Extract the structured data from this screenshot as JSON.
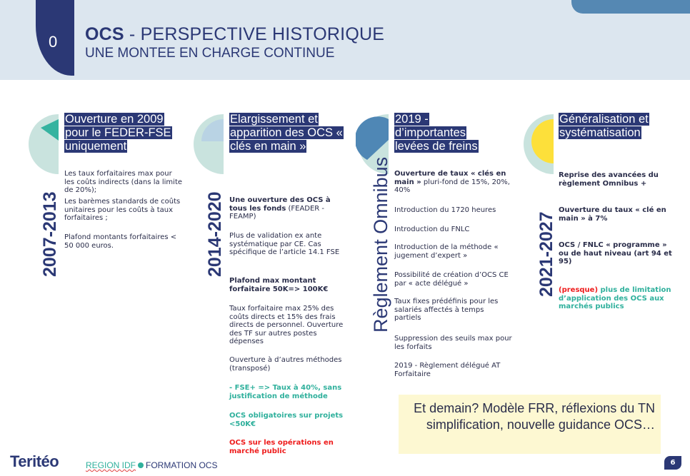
{
  "header": {
    "section_number": "0",
    "title_bold": "OCS",
    "title_rest": " - PERSPECTIVE HISTORIQUE",
    "subtitle": "UNE MONTEE EN CHARGE CONTINUE"
  },
  "columns": [
    {
      "period": "2007-2013",
      "heading": "Ouverture en 2009 pour le FEDER-FSE uniquement",
      "items": [
        {
          "text": "Les taux forfaitaires max pour les coûts indirects (dans la limite de 20%);"
        },
        {
          "text": "Les barèmes standards de coûts unitaires pour les coûts à taux forfaitaires ;"
        },
        {
          "text": "Plafond montants forfaitaires < 50 000 euros."
        }
      ]
    },
    {
      "period": "2014-2020",
      "heading": "Elargissement et apparition des OCS « clés en main »",
      "items": [
        {
          "bold": "Une ouverture des OCS à tous les fonds",
          "text": " (FEADER - FEAMP)"
        },
        {
          "text": "Plus de validation ex ante systématique par CE. Cas spécifique de l’article 14.1 FSE"
        },
        {
          "bold": "Plafond max montant forfaitaire 50K=> 100K€"
        },
        {
          "text": "Taux forfaitaire max 25% des coûts directs et 15% des frais directs de personnel. Ouverture des TF sur autres postes dépenses"
        },
        {
          "text": "Ouverture à d’autres méthodes (transposé)"
        },
        {
          "bold": "- FSE+ => Taux à 40%, sans justification de méthode",
          "color": "teal"
        },
        {
          "bold": "OCS obligatoires sur projets <50K€",
          "color": "teal"
        },
        {
          "bold": "OCS sur les opérations en marché public",
          "color": "red"
        }
      ]
    },
    {
      "period": "Règlement Omnibus",
      "heading": "2019 - d’importantes levées de freins",
      "items": [
        {
          "bold": "Ouverture de taux « clés en main »",
          "text": " pluri-fond de  15%, 20%, 40%"
        },
        {
          "text": "Introduction du 1720 heures"
        },
        {
          "text": "Introduction du FNLC"
        },
        {
          "text": "Introduction de la méthode « jugement d’expert »"
        },
        {
          "text": "Possibilité de création d’OCS CE par « acte délégué »"
        },
        {
          "text": "Taux fixes prédéfinis pour les salariés affectés à temps partiels"
        },
        {
          "text": "Suppression des seuils max pour les forfaits"
        },
        {
          "text": "2019 - Règlement délégué AT Forfaitaire"
        }
      ]
    },
    {
      "period": "2021-2027",
      "heading": "Généralisation et systématisation",
      "items": [
        {
          "bold": "Reprise des avancées du règlement Omnibus +"
        },
        {
          "bold": "Ouverture du taux « clé en main » à 7%"
        },
        {
          "bold": "OCS / FNLC  « programme » ou de haut niveau (art 94 et 95)"
        },
        {
          "red": "(presque)",
          "bold": " plus de limitation d’application des OCS aux marchés publics",
          "color": "teal"
        }
      ]
    }
  ],
  "callout": "Et demain? Modèle FRR, réflexions du TN simplification, nouvelle guidance OCS…",
  "footer": {
    "logo": "Teritéo",
    "region": "REGION IDF",
    "formation": "FORMATION OCS",
    "page_number": "6"
  },
  "colors": {
    "navy": "#2b3875",
    "teal": "#2fb09c",
    "red": "#ee1c1c",
    "header_bg": "#dce6ef",
    "callout_bg": "#fdf8d2",
    "pie_bg": "#c9e3de",
    "pie_2007": "#35b3a0",
    "pie_2014": "#b9d3e4",
    "pie_2019": "#4f87b5",
    "pie_2021": "#fde03a"
  }
}
